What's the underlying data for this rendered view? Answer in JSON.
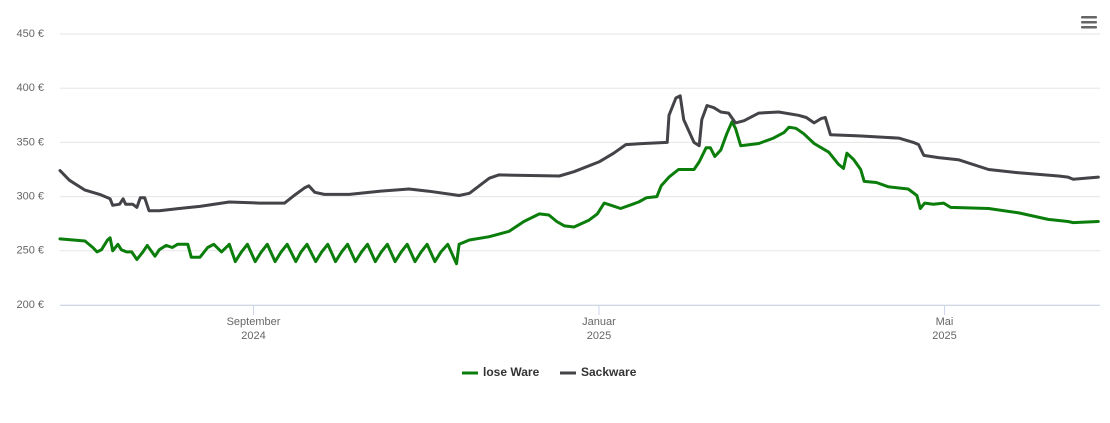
{
  "chart_data": {
    "type": "line",
    "xlim": [
      5.76,
      17.8
    ],
    "xticks": [
      {
        "value": 8,
        "label": "September 2024"
      },
      {
        "value": 12,
        "label": "Januar 2025"
      },
      {
        "value": 16,
        "label": "Mai 2025"
      }
    ],
    "ylim": [
      200,
      450
    ],
    "yticks": [
      {
        "value": 200,
        "label": "200 €"
      },
      {
        "value": 250,
        "label": "250 €"
      },
      {
        "value": 300,
        "label": "300 €"
      },
      {
        "value": 350,
        "label": "350 €"
      },
      {
        "value": 400,
        "label": "400 €"
      },
      {
        "value": 450,
        "label": "450 €"
      }
    ],
    "grid": true,
    "legend": "bottom",
    "series": [
      {
        "name": "lose Ware",
        "color": "#0b7d0b",
        "x": [
          5.76,
          6.05,
          6.14,
          6.19,
          6.24,
          6.31,
          6.34,
          6.37,
          6.43,
          6.47,
          6.53,
          6.59,
          6.65,
          6.72,
          6.77,
          6.86,
          6.91,
          6.99,
          7.06,
          7.12,
          7.24,
          7.28,
          7.38,
          7.47,
          7.54,
          7.63,
          7.72,
          7.79,
          7.86,
          7.93,
          8.02,
          8.09,
          8.16,
          8.25,
          8.32,
          8.39,
          8.49,
          8.55,
          8.62,
          8.72,
          8.79,
          8.86,
          8.95,
          9.02,
          9.09,
          9.18,
          9.25,
          9.32,
          9.41,
          9.48,
          9.55,
          9.64,
          9.71,
          9.78,
          9.87,
          9.94,
          10.01,
          10.1,
          10.17,
          10.25,
          10.35,
          10.38,
          10.5,
          10.73,
          10.96,
          11.13,
          11.31,
          11.42,
          11.51,
          11.6,
          11.71,
          11.88,
          11.98,
          12.06,
          12.14,
          12.25,
          12.46,
          12.55,
          12.67,
          12.72,
          12.81,
          12.92,
          13.1,
          13.16,
          13.24,
          13.29,
          13.34,
          13.41,
          13.48,
          13.54,
          13.58,
          13.64,
          13.85,
          14.02,
          14.14,
          14.2,
          14.28,
          14.37,
          14.49,
          14.66,
          14.77,
          14.83,
          14.87,
          14.95,
          15.03,
          15.07,
          15.21,
          15.35,
          15.58,
          15.68,
          15.72,
          15.77,
          15.87,
          15.99,
          16.07,
          16.51,
          16.86,
          17.2,
          17.43,
          17.49,
          17.78
        ],
        "values": [
          261,
          259,
          253,
          249,
          251,
          260,
          262,
          250,
          256,
          251,
          249,
          249,
          242,
          249,
          255,
          245,
          251,
          255,
          253,
          256,
          256,
          244,
          244,
          253,
          256,
          249,
          256,
          240,
          249,
          256,
          240,
          249,
          256,
          240,
          249,
          256,
          240,
          249,
          256,
          240,
          249,
          256,
          240,
          249,
          256,
          240,
          249,
          256,
          240,
          249,
          256,
          240,
          249,
          256,
          240,
          249,
          256,
          240,
          249,
          256,
          238,
          256,
          260,
          263,
          268,
          277,
          284,
          283,
          277,
          273,
          272,
          278,
          284,
          294,
          292,
          289,
          295,
          299,
          300,
          310,
          318,
          325,
          325,
          332,
          345,
          345,
          337,
          343,
          358,
          369,
          363,
          347,
          349,
          354,
          359,
          364,
          363,
          358,
          349,
          341,
          330,
          326,
          340,
          334,
          325,
          314,
          313,
          309,
          307,
          301,
          289,
          294,
          293,
          294,
          290,
          289,
          285,
          279,
          277,
          276,
          277
        ]
      },
      {
        "name": "Sackware",
        "color": "#434348",
        "x": [
          5.76,
          5.87,
          6.05,
          6.22,
          6.34,
          6.37,
          6.45,
          6.49,
          6.52,
          6.6,
          6.65,
          6.69,
          6.74,
          6.79,
          6.91,
          7.14,
          7.38,
          7.72,
          8.07,
          8.36,
          8.47,
          8.59,
          8.64,
          8.71,
          8.82,
          9.11,
          9.46,
          9.8,
          10.03,
          10.38,
          10.5,
          10.73,
          10.84,
          11.54,
          11.71,
          12.0,
          12.17,
          12.31,
          12.52,
          12.79,
          12.81,
          12.89,
          12.94,
          12.98,
          13.1,
          13.16,
          13.19,
          13.25,
          13.33,
          13.41,
          13.5,
          13.58,
          13.68,
          13.85,
          14.08,
          14.31,
          14.4,
          14.49,
          14.57,
          14.62,
          14.68,
          15.01,
          15.47,
          15.64,
          15.7,
          15.76,
          15.93,
          16.16,
          16.51,
          16.86,
          17.32,
          17.43,
          17.49,
          17.78
        ],
        "values": [
          324,
          315,
          306,
          302,
          298,
          292,
          293,
          298,
          293,
          293,
          290,
          299,
          299,
          287,
          287,
          289,
          291,
          295,
          294,
          294,
          301,
          308,
          310,
          304,
          302,
          302,
          305,
          307,
          305,
          301,
          303,
          317,
          320,
          319,
          323,
          332,
          340,
          348,
          349,
          350,
          375,
          391,
          393,
          371,
          350,
          347,
          371,
          384,
          382,
          378,
          377,
          368,
          370,
          377,
          378,
          375,
          373,
          368,
          372,
          373,
          357,
          356,
          354,
          350,
          348,
          338,
          336,
          334,
          325,
          322,
          319,
          318,
          316,
          318
        ]
      }
    ]
  }
}
